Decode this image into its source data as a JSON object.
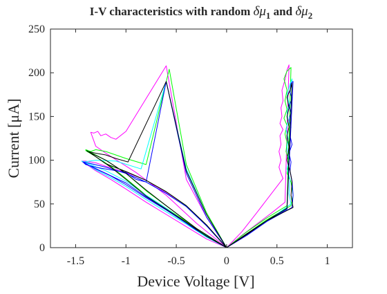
{
  "chart_data": {
    "type": "line",
    "title": "I-V characteristics with random δμ₁ and δμ₂",
    "title_parts": {
      "prefix": "I-V characteristics with random ",
      "sym1": "δμ",
      "sub1": "1",
      "mid": " and ",
      "sym2": "δμ",
      "sub2": "2"
    },
    "xlabel": "Device Voltage [V]",
    "ylabel": "Current [μA]",
    "xlim": [
      -1.75,
      1.25
    ],
    "ylim": [
      0,
      250
    ],
    "x_ticks": [
      -1.5,
      -1,
      -0.5,
      0,
      0.5,
      1
    ],
    "x_tick_labels": [
      "-1.5",
      "-1",
      "-0.5",
      "0",
      "0.5",
      "1"
    ],
    "y_ticks": [
      0,
      50,
      100,
      150,
      200,
      250
    ],
    "y_tick_labels": [
      "0",
      "50",
      "100",
      "150",
      "200",
      "250"
    ],
    "grid": false,
    "legend": "none",
    "series": [
      {
        "color": "#ff00ff",
        "points": [
          [
            0,
            0
          ],
          [
            -0.2,
            25
          ],
          [
            -0.4,
            47
          ],
          [
            -0.6,
            63
          ],
          [
            -0.8,
            77
          ],
          [
            -1.0,
            86
          ],
          [
            -1.2,
            93
          ],
          [
            -1.3,
            97
          ],
          [
            -1.4,
            99
          ],
          [
            -1.44,
            99
          ],
          [
            -1.3,
            88
          ],
          [
            -1.15,
            78
          ],
          [
            -1.0,
            67
          ],
          [
            -0.8,
            52
          ],
          [
            -0.6,
            38
          ],
          [
            -0.4,
            24
          ],
          [
            -0.2,
            10
          ],
          [
            -0.08,
            4
          ],
          [
            0,
            0
          ],
          [
            0,
            0
          ],
          [
            0.15,
            14
          ],
          [
            0.3,
            27
          ],
          [
            0.45,
            40
          ],
          [
            0.58,
            52
          ],
          [
            0.62,
            209
          ],
          [
            0.6,
            203
          ],
          [
            0.58,
            192
          ],
          [
            0.55,
            180
          ],
          [
            0.56,
            168
          ],
          [
            0.54,
            160
          ],
          [
            0.55,
            150
          ],
          [
            0.53,
            142
          ],
          [
            0.56,
            135
          ],
          [
            0.53,
            128
          ],
          [
            0.54,
            118
          ],
          [
            0.52,
            110
          ],
          [
            0.54,
            100
          ],
          [
            0.52,
            92
          ],
          [
            0.54,
            85
          ],
          [
            0.56,
            79
          ],
          [
            0.3,
            40
          ],
          [
            0.15,
            18
          ],
          [
            0,
            0
          ],
          [
            0,
            0
          ],
          [
            -0.2,
            35
          ],
          [
            -0.4,
            78
          ],
          [
            -0.6,
            208
          ],
          [
            -1.0,
            133
          ],
          [
            -1.1,
            124
          ],
          [
            -1.15,
            126
          ],
          [
            -1.2,
            130
          ],
          [
            -1.25,
            128
          ],
          [
            -1.28,
            133
          ],
          [
            -1.32,
            131
          ],
          [
            -1.35,
            132
          ],
          [
            -1.3,
            116
          ],
          [
            -1.2,
            108
          ],
          [
            -0.9,
            86
          ],
          [
            -0.6,
            60
          ],
          [
            -0.3,
            28
          ],
          [
            0,
            0
          ]
        ]
      },
      {
        "color": "#00ff00",
        "points": [
          [
            0,
            0
          ],
          [
            -0.2,
            26
          ],
          [
            -0.4,
            48
          ],
          [
            -0.6,
            64
          ],
          [
            -0.8,
            77
          ],
          [
            -1.0,
            87
          ],
          [
            -1.2,
            96
          ],
          [
            -1.35,
            108
          ],
          [
            -1.4,
            111
          ],
          [
            -1.3,
            104
          ],
          [
            -1.15,
            93
          ],
          [
            -1.0,
            79
          ],
          [
            -0.8,
            60
          ],
          [
            -0.6,
            45
          ],
          [
            -0.4,
            30
          ],
          [
            -0.2,
            14
          ],
          [
            0,
            0
          ],
          [
            0,
            0
          ],
          [
            0.2,
            18
          ],
          [
            0.4,
            34
          ],
          [
            0.6,
            48
          ],
          [
            0.64,
            206
          ],
          [
            0.6,
            202
          ],
          [
            0.57,
            193
          ],
          [
            0.6,
            180
          ],
          [
            0.58,
            168
          ],
          [
            0.6,
            158
          ],
          [
            0.57,
            148
          ],
          [
            0.6,
            140
          ],
          [
            0.58,
            130
          ],
          [
            0.6,
            120
          ],
          [
            0.59,
            110
          ],
          [
            0.62,
            98
          ],
          [
            0.6,
            85
          ],
          [
            0.64,
            75
          ],
          [
            0.66,
            60
          ],
          [
            0.64,
            48
          ],
          [
            0.4,
            32
          ],
          [
            0.2,
            16
          ],
          [
            0,
            0
          ],
          [
            0,
            0
          ],
          [
            -0.2,
            40
          ],
          [
            -0.4,
            95
          ],
          [
            -0.57,
            204
          ],
          [
            -0.8,
            95
          ],
          [
            -1.0,
            102
          ],
          [
            -1.2,
            110
          ],
          [
            -1.3,
            112
          ],
          [
            -1.35,
            110
          ],
          [
            -1.4,
            112
          ],
          [
            -1.2,
            100
          ],
          [
            -1.0,
            85
          ],
          [
            -0.8,
            65
          ],
          [
            -0.6,
            48
          ],
          [
            -0.3,
            22
          ],
          [
            0,
            0
          ]
        ]
      },
      {
        "color": "#00ffff",
        "points": [
          [
            0,
            0
          ],
          [
            -0.2,
            25
          ],
          [
            -0.4,
            47
          ],
          [
            -0.6,
            62
          ],
          [
            -0.8,
            75
          ],
          [
            -1.0,
            85
          ],
          [
            -1.2,
            92
          ],
          [
            -1.38,
            97
          ],
          [
            -1.44,
            99
          ],
          [
            -1.3,
            89
          ],
          [
            -1.15,
            80
          ],
          [
            -1.0,
            70
          ],
          [
            -0.8,
            55
          ],
          [
            -0.6,
            41
          ],
          [
            -0.4,
            27
          ],
          [
            -0.2,
            12
          ],
          [
            0,
            0
          ],
          [
            0,
            0
          ],
          [
            0.2,
            16
          ],
          [
            0.4,
            30
          ],
          [
            0.6,
            44
          ],
          [
            0.65,
            193
          ],
          [
            0.63,
            187
          ],
          [
            0.6,
            175
          ],
          [
            0.62,
            165
          ],
          [
            0.6,
            155
          ],
          [
            0.61,
            145
          ],
          [
            0.59,
            135
          ],
          [
            0.61,
            125
          ],
          [
            0.6,
            115
          ],
          [
            0.62,
            100
          ],
          [
            0.6,
            90
          ],
          [
            0.63,
            78
          ],
          [
            0.62,
            62
          ],
          [
            0.64,
            50
          ],
          [
            0.4,
            30
          ],
          [
            0.2,
            15
          ],
          [
            0,
            0
          ],
          [
            0,
            0
          ],
          [
            -0.2,
            38
          ],
          [
            -0.4,
            90
          ],
          [
            -0.6,
            190
          ],
          [
            -0.85,
            90
          ],
          [
            -1.1,
            99
          ],
          [
            -1.3,
            100
          ],
          [
            -1.42,
            98
          ],
          [
            -1.2,
            88
          ],
          [
            -1.0,
            76
          ],
          [
            -0.8,
            60
          ],
          [
            -0.6,
            45
          ],
          [
            -0.3,
            20
          ],
          [
            0,
            0
          ]
        ]
      },
      {
        "color": "#0000ff",
        "points": [
          [
            0,
            0
          ],
          [
            -0.2,
            25
          ],
          [
            -0.4,
            47
          ],
          [
            -0.6,
            62
          ],
          [
            -0.8,
            75
          ],
          [
            -1.0,
            85
          ],
          [
            -1.2,
            92
          ],
          [
            -1.38,
            97
          ],
          [
            -1.43,
            98
          ],
          [
            -1.3,
            90
          ],
          [
            -1.15,
            82
          ],
          [
            -1.0,
            72
          ],
          [
            -0.8,
            57
          ],
          [
            -0.6,
            43
          ],
          [
            -0.4,
            28
          ],
          [
            -0.2,
            13
          ],
          [
            0,
            0
          ],
          [
            0,
            0
          ],
          [
            0.2,
            15
          ],
          [
            0.4,
            30
          ],
          [
            0.6,
            44
          ],
          [
            0.66,
            190
          ],
          [
            0.64,
            188
          ],
          [
            0.63,
            178
          ],
          [
            0.65,
            170
          ],
          [
            0.62,
            162
          ],
          [
            0.64,
            154
          ],
          [
            0.62,
            146
          ],
          [
            0.64,
            138
          ],
          [
            0.63,
            128
          ],
          [
            0.65,
            118
          ],
          [
            0.62,
            108
          ],
          [
            0.64,
            98
          ],
          [
            0.63,
            88
          ],
          [
            0.65,
            76
          ],
          [
            0.66,
            60
          ],
          [
            0.65,
            46
          ],
          [
            0.4,
            30
          ],
          [
            0.2,
            14
          ],
          [
            0,
            0
          ],
          [
            0,
            0
          ],
          [
            -0.2,
            35
          ],
          [
            -0.4,
            85
          ],
          [
            -0.6,
            190
          ],
          [
            -0.8,
            75
          ],
          [
            -0.9,
            78
          ],
          [
            -1.0,
            86
          ],
          [
            -1.1,
            88
          ],
          [
            -1.2,
            90
          ],
          [
            -1.3,
            92
          ],
          [
            -1.4,
            95
          ],
          [
            -1.42,
            97
          ],
          [
            -1.2,
            85
          ],
          [
            -1.0,
            74
          ],
          [
            -0.8,
            58
          ],
          [
            -0.6,
            44
          ],
          [
            -0.3,
            20
          ],
          [
            0,
            0
          ]
        ]
      },
      {
        "color": "#000000",
        "points": [
          [
            0,
            0
          ],
          [
            -0.2,
            26
          ],
          [
            -0.4,
            48
          ],
          [
            -0.6,
            64
          ],
          [
            -0.8,
            77
          ],
          [
            -1.0,
            87
          ],
          [
            -1.2,
            96
          ],
          [
            -1.35,
            108
          ],
          [
            -1.39,
            111
          ],
          [
            -1.3,
            104
          ],
          [
            -1.15,
            92
          ],
          [
            -1.0,
            78
          ],
          [
            -0.8,
            59
          ],
          [
            -0.6,
            44
          ],
          [
            -0.4,
            29
          ],
          [
            -0.2,
            13
          ],
          [
            0,
            0
          ],
          [
            0,
            0
          ],
          [
            0.2,
            16
          ],
          [
            0.4,
            31
          ],
          [
            0.6,
            45
          ],
          [
            0.65,
            188
          ],
          [
            0.63,
            180
          ],
          [
            0.6,
            172
          ],
          [
            0.62,
            160
          ],
          [
            0.6,
            150
          ],
          [
            0.62,
            138
          ],
          [
            0.6,
            128
          ],
          [
            0.62,
            115
          ],
          [
            0.6,
            100
          ],
          [
            0.63,
            88
          ],
          [
            0.65,
            75
          ],
          [
            0.64,
            60
          ],
          [
            0.66,
            46
          ],
          [
            0.4,
            31
          ],
          [
            0.2,
            15
          ],
          [
            0,
            0
          ],
          [
            0,
            0
          ],
          [
            -0.2,
            38
          ],
          [
            -0.4,
            88
          ],
          [
            -0.6,
            190
          ],
          [
            -0.98,
            98
          ],
          [
            -1.1,
            102
          ],
          [
            -1.2,
            106
          ],
          [
            -1.3,
            108
          ],
          [
            -1.38,
            110
          ],
          [
            -1.2,
            100
          ],
          [
            -1.0,
            85
          ],
          [
            -0.8,
            66
          ],
          [
            -0.6,
            48
          ],
          [
            -0.3,
            22
          ],
          [
            0,
            0
          ]
        ]
      }
    ]
  }
}
